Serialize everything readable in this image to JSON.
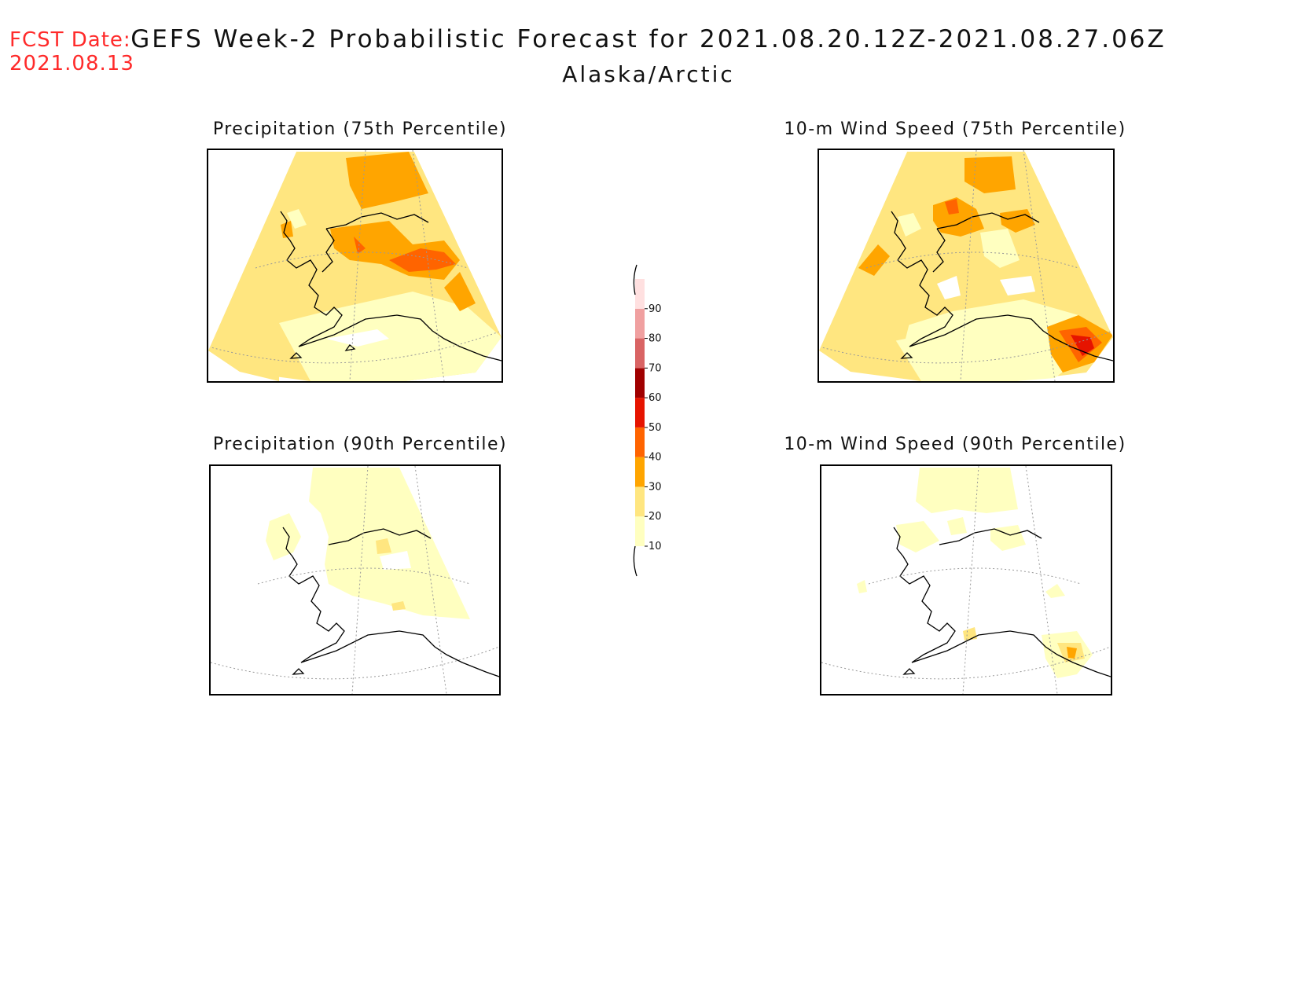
{
  "header": {
    "fcst_label": "FCST Date:",
    "fcst_date": "2021.08.13",
    "title": "GEFS Week-2 Probabilistic Forecast for 2021.08.20.12Z-2021.08.27.06Z",
    "subtitle": "Alaska/Arctic"
  },
  "panels": [
    {
      "id": "precip75",
      "title": "Precipitation (75th Percentile)"
    },
    {
      "id": "wind75",
      "title": "10-m Wind Speed (75th Percentile)"
    },
    {
      "id": "precip90",
      "title": "Precipitation (90th Percentile)"
    },
    {
      "id": "wind90",
      "title": "10-m Wind Speed (90th Percentile)"
    }
  ],
  "colorbar": {
    "levels": [
      10,
      20,
      30,
      40,
      50,
      60,
      70,
      80,
      90
    ],
    "labels": [
      "10",
      "20",
      "30",
      "40",
      "50",
      "60",
      "70",
      "80",
      "90"
    ],
    "colors": [
      "#ffffc0",
      "#ffe680",
      "#ffa500",
      "#ff6400",
      "#e61400",
      "#a00000",
      "#d96464",
      "#f0a0a0",
      "#ffe0e0"
    ]
  }
}
